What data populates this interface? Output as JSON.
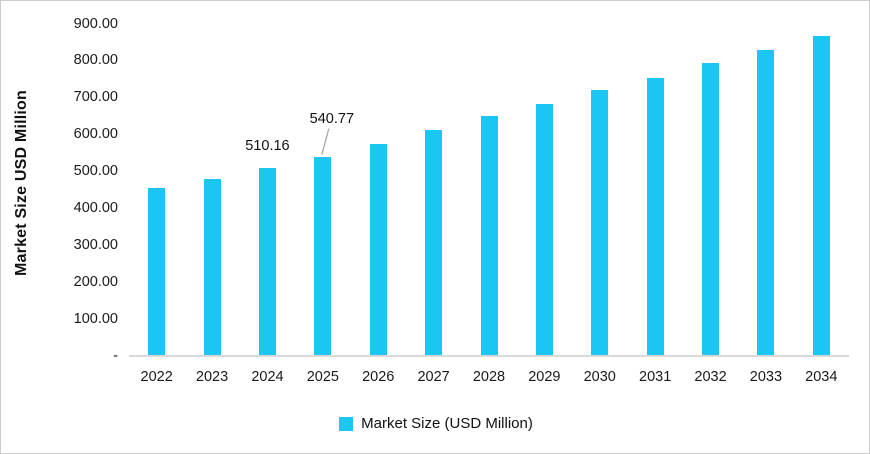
{
  "chart_data": {
    "type": "bar",
    "title": "",
    "xlabel": "",
    "ylabel": "Market Size USD Million",
    "categories": [
      "2022",
      "2023",
      "2024",
      "2025",
      "2026",
      "2027",
      "2028",
      "2029",
      "2030",
      "2031",
      "2032",
      "2033",
      "2034"
    ],
    "series": [
      {
        "name": "Market Size (USD Million)",
        "values": [
          455,
          480,
          510.16,
          540.77,
          575,
          612,
          650,
          683,
          721,
          754,
          794,
          829,
          867
        ]
      }
    ],
    "ylim": [
      0,
      900
    ],
    "ytick_step": 100,
    "yticks": [
      {
        "value": 0,
        "label": "-"
      },
      {
        "value": 100,
        "label": "100.00"
      },
      {
        "value": 200,
        "label": "200.00"
      },
      {
        "value": 300,
        "label": "300.00"
      },
      {
        "value": 400,
        "label": "400.00"
      },
      {
        "value": 500,
        "label": "500.00"
      },
      {
        "value": 600,
        "label": "600.00"
      },
      {
        "value": 700,
        "label": "700.00"
      },
      {
        "value": 800,
        "label": "800.00"
      },
      {
        "value": 900,
        "label": "900.00"
      }
    ],
    "grid": false,
    "legend_position": "bottom",
    "legend": [
      "Market Size (USD Million)"
    ],
    "data_labels": [
      {
        "category": "2024",
        "text": "510.16",
        "placement": "above"
      },
      {
        "category": "2025",
        "text": "540.77",
        "placement": "offset-above-right",
        "leader_line": true
      }
    ],
    "colors": {
      "bar": "#1bc6f2",
      "axis_line": "#d9d9d9",
      "leader_line": "#a6a6a6",
      "text": "#111111"
    }
  }
}
